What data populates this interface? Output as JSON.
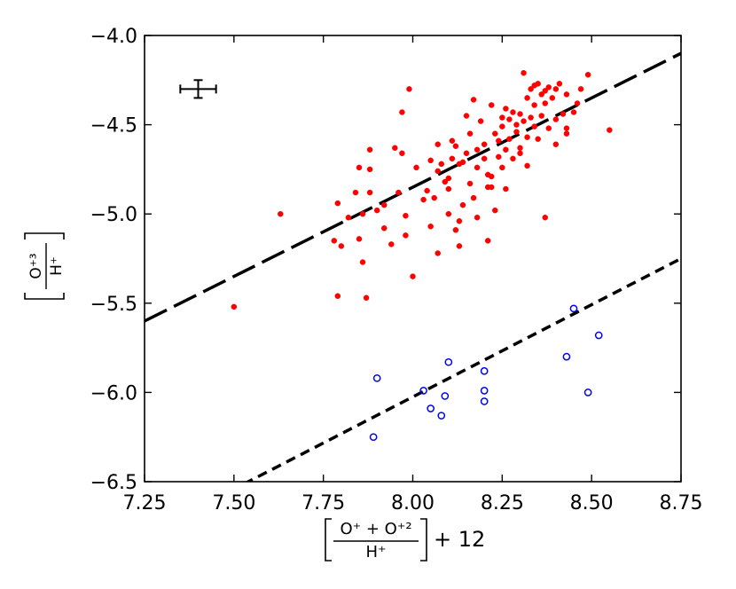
{
  "chart_data": {
    "type": "scatter",
    "xlabel": {
      "bracket_numerator": "O⁺ + O⁺²",
      "bracket_denominator": "H⁺",
      "suffix": "+ 12"
    },
    "ylabel": {
      "bracket_numerator": "O⁺³",
      "bracket_denominator": "H⁺"
    },
    "xlim": [
      7.25,
      8.75
    ],
    "ylim": [
      -6.5,
      -4.0
    ],
    "xticks": [
      7.25,
      7.5,
      7.75,
      8.0,
      8.25,
      8.5,
      8.75
    ],
    "xtick_labels": [
      "7.25",
      "7.50",
      "7.75",
      "8.00",
      "8.25",
      "8.50",
      "8.75"
    ],
    "yticks": [
      -6.5,
      -6.0,
      -5.5,
      -5.0,
      -4.5,
      -4.0
    ],
    "ytick_labels": [
      "−6.5",
      "−6.0",
      "−5.5",
      "−5.0",
      "−4.5",
      "−4.0"
    ],
    "grid": false,
    "error_bar": {
      "x": 7.4,
      "y": -4.3,
      "xerr": 0.05,
      "yerr": 0.05
    },
    "series": [
      {
        "marker": "filled-circle",
        "color": "#ff0000",
        "points": [
          [
            7.5,
            -5.52
          ],
          [
            7.63,
            -5.0
          ],
          [
            7.78,
            -5.15
          ],
          [
            7.79,
            -5.46
          ],
          [
            7.79,
            -4.94
          ],
          [
            7.8,
            -5.18
          ],
          [
            7.82,
            -5.02
          ],
          [
            7.84,
            -4.88
          ],
          [
            7.85,
            -4.74
          ],
          [
            7.85,
            -5.14
          ],
          [
            7.86,
            -5.0
          ],
          [
            7.86,
            -5.27
          ],
          [
            7.87,
            -5.47
          ],
          [
            7.88,
            -4.88
          ],
          [
            7.88,
            -4.64
          ],
          [
            7.88,
            -4.75
          ],
          [
            7.9,
            -4.98
          ],
          [
            7.92,
            -4.95
          ],
          [
            7.92,
            -5.08
          ],
          [
            7.94,
            -5.17
          ],
          [
            7.95,
            -4.63
          ],
          [
            7.96,
            -4.88
          ],
          [
            7.97,
            -4.43
          ],
          [
            7.97,
            -4.66
          ],
          [
            7.98,
            -5.01
          ],
          [
            7.98,
            -5.12
          ],
          [
            7.99,
            -4.3
          ],
          [
            8.0,
            -5.35
          ],
          [
            8.01,
            -4.74
          ],
          [
            8.03,
            -4.92
          ],
          [
            8.04,
            -4.87
          ],
          [
            8.05,
            -5.07
          ],
          [
            8.05,
            -4.7
          ],
          [
            8.06,
            -4.91
          ],
          [
            8.07,
            -4.76
          ],
          [
            8.07,
            -4.61
          ],
          [
            8.07,
            -5.22
          ],
          [
            8.08,
            -4.72
          ],
          [
            8.09,
            -4.82
          ],
          [
            8.1,
            -4.86
          ],
          [
            8.1,
            -5.0
          ],
          [
            8.1,
            -4.8
          ],
          [
            8.11,
            -4.69
          ],
          [
            8.11,
            -4.59
          ],
          [
            8.12,
            -5.09
          ],
          [
            8.12,
            -4.62
          ],
          [
            8.13,
            -4.72
          ],
          [
            8.13,
            -5.04
          ],
          [
            8.13,
            -5.18
          ],
          [
            8.14,
            -4.95
          ],
          [
            8.14,
            -4.71
          ],
          [
            8.15,
            -4.45
          ],
          [
            8.15,
            -4.66
          ],
          [
            8.16,
            -4.83
          ],
          [
            8.16,
            -4.55
          ],
          [
            8.17,
            -4.36
          ],
          [
            8.17,
            -4.91
          ],
          [
            8.18,
            -5.02
          ],
          [
            8.18,
            -4.74
          ],
          [
            8.18,
            -4.64
          ],
          [
            8.19,
            -4.48
          ],
          [
            8.2,
            -4.69
          ],
          [
            8.2,
            -4.61
          ],
          [
            8.21,
            -4.85
          ],
          [
            8.21,
            -4.78
          ],
          [
            8.21,
            -5.15
          ],
          [
            8.22,
            -4.79
          ],
          [
            8.22,
            -4.39
          ],
          [
            8.22,
            -4.85
          ],
          [
            8.23,
            -4.55
          ],
          [
            8.23,
            -4.98
          ],
          [
            8.24,
            -4.68
          ],
          [
            8.24,
            -4.59
          ],
          [
            8.25,
            -4.51
          ],
          [
            8.25,
            -4.46
          ],
          [
            8.25,
            -4.74
          ],
          [
            8.26,
            -4.64
          ],
          [
            8.26,
            -4.41
          ],
          [
            8.26,
            -4.86
          ],
          [
            8.27,
            -4.58
          ],
          [
            8.27,
            -4.47
          ],
          [
            8.28,
            -4.43
          ],
          [
            8.28,
            -4.69
          ],
          [
            8.29,
            -4.54
          ],
          [
            8.29,
            -4.5
          ],
          [
            8.3,
            -4.63
          ],
          [
            8.3,
            -4.44
          ],
          [
            8.3,
            -4.66
          ],
          [
            8.31,
            -4.21
          ],
          [
            8.31,
            -4.48
          ],
          [
            8.32,
            -4.57
          ],
          [
            8.32,
            -4.35
          ],
          [
            8.32,
            -4.73
          ],
          [
            8.33,
            -4.3
          ],
          [
            8.33,
            -4.46
          ],
          [
            8.34,
            -4.28
          ],
          [
            8.34,
            -4.51
          ],
          [
            8.34,
            -4.39
          ],
          [
            8.35,
            -4.58
          ],
          [
            8.35,
            -4.27
          ],
          [
            8.36,
            -4.33
          ],
          [
            8.36,
            -4.45
          ],
          [
            8.37,
            -4.31
          ],
          [
            8.37,
            -4.38
          ],
          [
            8.37,
            -5.02
          ],
          [
            8.38,
            -4.52
          ],
          [
            8.38,
            -4.29
          ],
          [
            8.39,
            -4.35
          ],
          [
            8.4,
            -4.3
          ],
          [
            8.4,
            -4.61
          ],
          [
            8.4,
            -4.47
          ],
          [
            8.41,
            -4.27
          ],
          [
            8.42,
            -4.44
          ],
          [
            8.43,
            -4.55
          ],
          [
            8.43,
            -4.52
          ],
          [
            8.43,
            -4.33
          ],
          [
            8.45,
            -4.43
          ],
          [
            8.46,
            -4.38
          ],
          [
            8.47,
            -4.3
          ],
          [
            8.49,
            -4.22
          ],
          [
            8.55,
            -4.53
          ]
        ]
      },
      {
        "marker": "open-circle",
        "color": "#0000ff",
        "points": [
          [
            7.89,
            -6.25
          ],
          [
            7.9,
            -5.92
          ],
          [
            8.03,
            -5.99
          ],
          [
            8.05,
            -6.09
          ],
          [
            8.08,
            -6.13
          ],
          [
            8.09,
            -6.02
          ],
          [
            8.1,
            -5.83
          ],
          [
            8.2,
            -5.88
          ],
          [
            8.2,
            -5.99
          ],
          [
            8.2,
            -6.05
          ],
          [
            8.43,
            -5.8
          ],
          [
            8.45,
            -5.53
          ],
          [
            8.49,
            -6.0
          ],
          [
            8.52,
            -5.68
          ]
        ]
      }
    ],
    "fit_lines": [
      {
        "style": "long-dash",
        "color": "#000000",
        "points": [
          [
            7.25,
            -5.6
          ],
          [
            8.75,
            -4.1
          ]
        ]
      },
      {
        "style": "short-dash",
        "color": "#000000",
        "points": [
          [
            7.25,
            -6.8
          ],
          [
            8.75,
            -5.25
          ]
        ]
      }
    ]
  }
}
